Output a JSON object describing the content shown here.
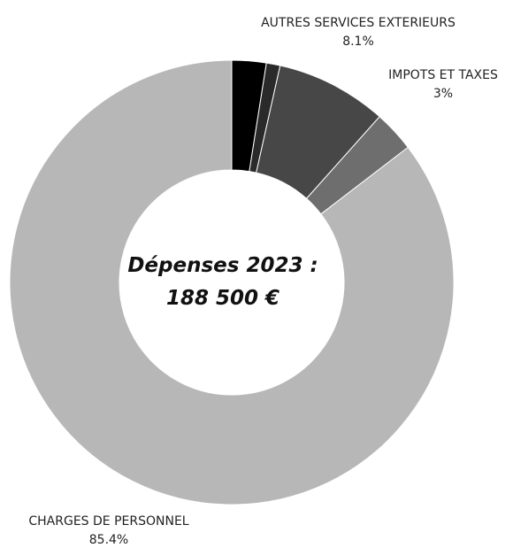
{
  "chart_data": {
    "type": "pie",
    "style": "donut",
    "center_label": {
      "line1": "Dépenses 2023 :",
      "line2": "188 500 €"
    },
    "slices": [
      {
        "label": "",
        "value": 2.5,
        "pct_text": "",
        "color": "#000000"
      },
      {
        "label": "",
        "value": 1.0,
        "pct_text": "",
        "color": "#2a2a2a"
      },
      {
        "label": "AUTRES SERVICES EXTERIEURS",
        "value": 8.1,
        "pct_text": "8.1%",
        "color": "#474747"
      },
      {
        "label": "IMPOTS ET TAXES",
        "value": 3.0,
        "pct_text": "3%",
        "color": "#6e6e6e"
      },
      {
        "label": "CHARGES DE PERSONNEL",
        "value": 85.4,
        "pct_text": "85.4%",
        "color": "#b7b7b7"
      }
    ]
  }
}
